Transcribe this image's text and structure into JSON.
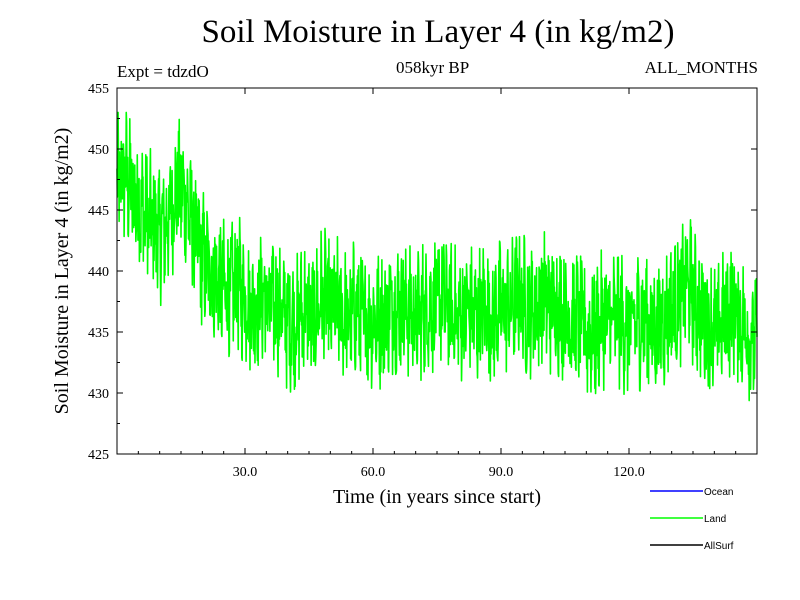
{
  "title": "Soil Moisture in Layer 4 (in kg/m2)",
  "subtitle": "058kyr BP",
  "expt_label": "Expt = tdzdO",
  "months_label": "ALL_MONTHS",
  "chart_data": {
    "type": "line",
    "title": "Soil Moisture in Layer 4 (in kg/m2)",
    "xlabel": "Time (in years since start)",
    "ylabel": "Soil Moisture in Layer 4 (in kg/m2)",
    "xlim": [
      0,
      150
    ],
    "ylim": [
      425,
      455
    ],
    "xticks": [
      30,
      60,
      90,
      120
    ],
    "xtick_labels": [
      "30.0",
      "60.0",
      "90.0",
      "120.0"
    ],
    "yticks": [
      425,
      430,
      435,
      440,
      445,
      450,
      455
    ],
    "ytick_labels": [
      "425",
      "430",
      "435",
      "440",
      "445",
      "450",
      "455"
    ],
    "legend": {
      "placement": "bottom-right",
      "entries": [
        "Ocean",
        "Land",
        "AllSurf"
      ]
    },
    "series": [
      {
        "name": "Ocean",
        "color": "#0000ff",
        "x": [],
        "y": []
      },
      {
        "name": "Land",
        "color": "#00ff00",
        "x": [
          0,
          2,
          4,
          6,
          8,
          10,
          12,
          14,
          16,
          18,
          20,
          22,
          24,
          26,
          28,
          30,
          32,
          34,
          36,
          38,
          40,
          42,
          44,
          46,
          48,
          50,
          52,
          54,
          56,
          58,
          60,
          62,
          64,
          66,
          68,
          70,
          72,
          74,
          76,
          78,
          80,
          82,
          84,
          86,
          88,
          90,
          92,
          94,
          96,
          98,
          100,
          102,
          104,
          106,
          108,
          110,
          112,
          114,
          116,
          118,
          120,
          122,
          124,
          126,
          128,
          130,
          132,
          134,
          136,
          138,
          140,
          142,
          144,
          146,
          148,
          150
        ],
        "y": [
          447,
          448,
          446,
          445,
          444,
          443,
          444,
          447,
          446,
          443,
          441,
          440,
          439,
          438,
          439,
          438,
          437,
          438,
          437,
          437,
          436,
          436,
          437,
          436,
          438,
          437,
          437,
          436,
          437,
          436,
          436,
          436,
          437,
          437,
          437,
          436,
          437,
          437,
          438,
          437,
          436,
          437,
          436,
          437,
          436,
          437,
          437,
          438,
          437,
          437,
          438,
          437,
          437,
          436,
          436,
          435,
          435,
          436,
          436,
          436,
          435,
          436,
          436,
          435,
          436,
          437,
          438,
          439,
          437,
          436,
          435,
          436,
          437,
          436,
          435,
          434
        ]
      },
      {
        "name": "AllSurf",
        "color": "#000000",
        "x": [],
        "y": []
      }
    ]
  }
}
